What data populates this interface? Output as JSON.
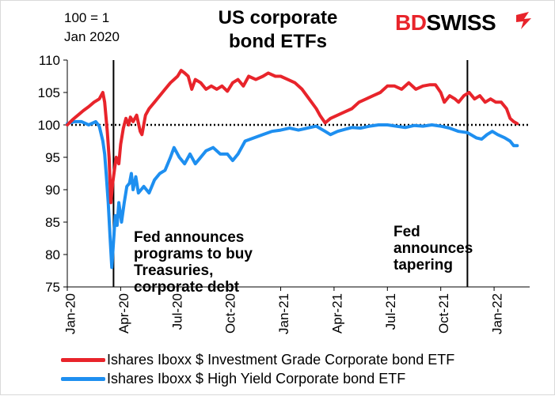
{
  "header": {
    "index_note_line1": "100 =  1",
    "index_note_line2": "Jan 2020",
    "title_line1": "US corporate",
    "title_line2": "bond ETFs"
  },
  "logo": {
    "part1": "BD",
    "part2": "SWISS",
    "icon": "arrow-flag-icon",
    "brand_color": "#e8242b"
  },
  "annotations": {
    "fed_programs": [
      "Fed announces",
      "programs to buy",
      "Treasuries,",
      "corporate debt"
    ],
    "fed_tapering": [
      "Fed",
      "announces",
      "tapering"
    ]
  },
  "legend": {
    "ig_label": "Ishares Iboxx $ Investment Grade Corporate bond ETF",
    "hy_label": "Ishares Iboxx $ High Yield Corporate bond ETF"
  },
  "chart_data": {
    "type": "line",
    "title": "US corporate bond ETFs",
    "index_note": "100 = 1 Jan 2020",
    "ylim": [
      75,
      110
    ],
    "yticks": [
      75,
      80,
      85,
      90,
      95,
      100,
      105,
      110
    ],
    "xlim": [
      0,
      26
    ],
    "x_ticks": [
      {
        "x": 0,
        "label": "Jan-20"
      },
      {
        "x": 3,
        "label": "Apr-20"
      },
      {
        "x": 6,
        "label": "Jul-20"
      },
      {
        "x": 9,
        "label": "Oct-20"
      },
      {
        "x": 12,
        "label": "Jan-21"
      },
      {
        "x": 15,
        "label": "Apr-21"
      },
      {
        "x": 18,
        "label": "Jul-21"
      },
      {
        "x": 21,
        "label": "Oct-21"
      },
      {
        "x": 24,
        "label": "Jan-22"
      }
    ],
    "x_units": "months since Jan 2020",
    "reference_line": {
      "y": 100,
      "style": "dotted",
      "color": "#000000"
    },
    "vertical_lines": [
      {
        "x": 2.6,
        "event": "Fed announces programs to buy Treasuries, corporate debt"
      },
      {
        "x": 22.5,
        "event": "Fed announces tapering"
      }
    ],
    "series": [
      {
        "name": "Ishares Iboxx $ Investment Grade Corporate bond ETF",
        "color": "#e8242b",
        "points": [
          [
            0,
            100
          ],
          [
            0.3,
            100.8
          ],
          [
            0.6,
            101.5
          ],
          [
            0.9,
            102.2
          ],
          [
            1.2,
            102.8
          ],
          [
            1.5,
            103.5
          ],
          [
            1.8,
            104
          ],
          [
            2.0,
            105
          ],
          [
            2.1,
            103.5
          ],
          [
            2.25,
            99
          ],
          [
            2.35,
            95
          ],
          [
            2.45,
            88
          ],
          [
            2.55,
            91
          ],
          [
            2.65,
            93
          ],
          [
            2.75,
            95
          ],
          [
            2.9,
            94
          ],
          [
            3.0,
            97
          ],
          [
            3.15,
            99.5
          ],
          [
            3.3,
            101
          ],
          [
            3.45,
            100
          ],
          [
            3.55,
            101.2
          ],
          [
            3.7,
            100.5
          ],
          [
            3.9,
            101.5
          ],
          [
            4.1,
            99
          ],
          [
            4.2,
            98.5
          ],
          [
            4.4,
            101.5
          ],
          [
            4.6,
            102.5
          ],
          [
            4.9,
            103.5
          ],
          [
            5.2,
            104.5
          ],
          [
            5.5,
            105.5
          ],
          [
            5.8,
            106.5
          ],
          [
            6.0,
            107
          ],
          [
            6.2,
            107.5
          ],
          [
            6.4,
            108.4
          ],
          [
            6.6,
            108
          ],
          [
            6.8,
            107.5
          ],
          [
            7.0,
            105.5
          ],
          [
            7.2,
            107
          ],
          [
            7.5,
            106.5
          ],
          [
            7.8,
            105.5
          ],
          [
            8.1,
            106
          ],
          [
            8.4,
            105.5
          ],
          [
            8.7,
            106
          ],
          [
            9.0,
            105.2
          ],
          [
            9.3,
            106.5
          ],
          [
            9.6,
            107
          ],
          [
            9.9,
            106
          ],
          [
            10.2,
            107.5
          ],
          [
            10.6,
            107
          ],
          [
            11.0,
            107.5
          ],
          [
            11.3,
            108
          ],
          [
            11.7,
            107.5
          ],
          [
            12.0,
            107.5
          ],
          [
            12.4,
            107
          ],
          [
            12.8,
            106.5
          ],
          [
            13.2,
            105.5
          ],
          [
            13.6,
            104
          ],
          [
            14.0,
            102.5
          ],
          [
            14.2,
            101.5
          ],
          [
            14.5,
            100.3
          ],
          [
            14.8,
            101
          ],
          [
            15.2,
            101.5
          ],
          [
            15.6,
            102
          ],
          [
            16.0,
            102.5
          ],
          [
            16.4,
            103.5
          ],
          [
            16.8,
            104
          ],
          [
            17.2,
            104.5
          ],
          [
            17.6,
            105
          ],
          [
            18.0,
            106
          ],
          [
            18.4,
            106
          ],
          [
            18.8,
            105.5
          ],
          [
            19.2,
            106.5
          ],
          [
            19.6,
            105.5
          ],
          [
            20.0,
            106
          ],
          [
            20.4,
            106.2
          ],
          [
            20.7,
            106.2
          ],
          [
            21.0,
            105
          ],
          [
            21.2,
            103.5
          ],
          [
            21.5,
            104.5
          ],
          [
            21.8,
            104
          ],
          [
            22.0,
            103.5
          ],
          [
            22.3,
            104.5
          ],
          [
            22.6,
            105
          ],
          [
            22.9,
            104
          ],
          [
            23.2,
            104.5
          ],
          [
            23.5,
            103.5
          ],
          [
            23.8,
            104
          ],
          [
            24.1,
            103.5
          ],
          [
            24.4,
            103.5
          ],
          [
            24.7,
            102.5
          ],
          [
            24.9,
            101
          ],
          [
            25.1,
            100.5
          ],
          [
            25.3,
            100.2
          ]
        ]
      },
      {
        "name": "Ishares Iboxx $ High Yield Corporate bond ETF",
        "color": "#1e8ff0",
        "points": [
          [
            0,
            100.2
          ],
          [
            0.4,
            100.5
          ],
          [
            0.8,
            100.5
          ],
          [
            1.2,
            100
          ],
          [
            1.6,
            100.5
          ],
          [
            1.8,
            99.8
          ],
          [
            2.0,
            97.5
          ],
          [
            2.1,
            95.5
          ],
          [
            2.2,
            92
          ],
          [
            2.3,
            88
          ],
          [
            2.4,
            83
          ],
          [
            2.5,
            78
          ],
          [
            2.6,
            82
          ],
          [
            2.7,
            86
          ],
          [
            2.8,
            84.5
          ],
          [
            2.9,
            88
          ],
          [
            3.05,
            85
          ],
          [
            3.2,
            88
          ],
          [
            3.35,
            90.5
          ],
          [
            3.5,
            91
          ],
          [
            3.6,
            92.5
          ],
          [
            3.7,
            90
          ],
          [
            3.85,
            92
          ],
          [
            4.0,
            89.5
          ],
          [
            4.3,
            90.5
          ],
          [
            4.6,
            89.5
          ],
          [
            4.9,
            91.5
          ],
          [
            5.2,
            92.5
          ],
          [
            5.5,
            93
          ],
          [
            5.8,
            95
          ],
          [
            6.0,
            96.5
          ],
          [
            6.3,
            95
          ],
          [
            6.6,
            94
          ],
          [
            6.9,
            95.5
          ],
          [
            7.2,
            94
          ],
          [
            7.5,
            95
          ],
          [
            7.8,
            96
          ],
          [
            8.2,
            96.5
          ],
          [
            8.6,
            95.5
          ],
          [
            9.0,
            95.5
          ],
          [
            9.3,
            94.5
          ],
          [
            9.6,
            95.5
          ],
          [
            10.0,
            97.5
          ],
          [
            10.5,
            98
          ],
          [
            11.0,
            98.5
          ],
          [
            11.5,
            99
          ],
          [
            12.0,
            99.2
          ],
          [
            12.5,
            99.5
          ],
          [
            13.0,
            99.2
          ],
          [
            13.5,
            99.5
          ],
          [
            14.0,
            99.8
          ],
          [
            14.5,
            99
          ],
          [
            14.8,
            98.5
          ],
          [
            15.2,
            99
          ],
          [
            15.6,
            99.3
          ],
          [
            16.0,
            99.6
          ],
          [
            16.5,
            99.5
          ],
          [
            17.0,
            99.8
          ],
          [
            17.5,
            100
          ],
          [
            18.0,
            100
          ],
          [
            18.5,
            99.8
          ],
          [
            19.0,
            99.6
          ],
          [
            19.5,
            99.9
          ],
          [
            20.0,
            99.8
          ],
          [
            20.5,
            100
          ],
          [
            21.0,
            99.8
          ],
          [
            21.5,
            99.5
          ],
          [
            22.0,
            99
          ],
          [
            22.5,
            98.8
          ],
          [
            23.0,
            98
          ],
          [
            23.3,
            97.8
          ],
          [
            23.6,
            98.5
          ],
          [
            23.9,
            99
          ],
          [
            24.2,
            98.5
          ],
          [
            24.6,
            98
          ],
          [
            24.9,
            97.5
          ],
          [
            25.1,
            96.8
          ],
          [
            25.3,
            96.8
          ]
        ]
      }
    ]
  }
}
